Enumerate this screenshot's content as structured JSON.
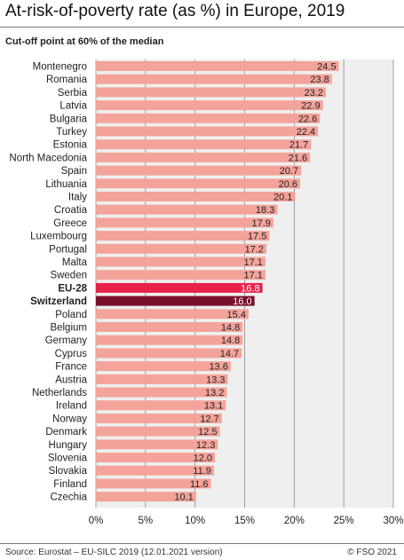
{
  "header": {
    "title": "At-risk-of-poverty rate (as %) in Europe, 2019",
    "subtitle": "Cut-off point at 60% of the median"
  },
  "footer": {
    "source": "Source: Eurostat – EU-SILC 2019 (12.01.2021 version)",
    "copyright": "© FSO 2021"
  },
  "colors": {
    "bar_default": "#f4a39a",
    "bar_eu28": "#e8234a",
    "bar_switzerland": "#7a0f2c",
    "plot_background": "#efefef",
    "grid": "#8a8a8a"
  },
  "chart_data": {
    "type": "bar",
    "orientation": "horizontal",
    "categories": [
      "Montenegro",
      "Romania",
      "Serbia",
      "Latvia",
      "Bulgaria",
      "Turkey",
      "Estonia",
      "North Macedonia",
      "Spain",
      "Lithuania",
      "Italy",
      "Croatia",
      "Greece",
      "Luxembourg",
      "Portugal",
      "Malta",
      "Sweden",
      "EU-28",
      "Switzerland",
      "Poland",
      "Belgium",
      "Germany",
      "Cyprus",
      "France",
      "Austria",
      "Netherlands",
      "Ireland",
      "Norway",
      "Denmark",
      "Hungary",
      "Slovenia",
      "Slovakia",
      "Finland",
      "Czechia"
    ],
    "values": [
      24.5,
      23.8,
      23.2,
      22.9,
      22.6,
      22.4,
      21.7,
      21.6,
      20.7,
      20.6,
      20.1,
      18.3,
      17.9,
      17.5,
      17.2,
      17.1,
      17.1,
      16.8,
      16.0,
      15.4,
      14.8,
      14.8,
      14.7,
      13.6,
      13.3,
      13.2,
      13.1,
      12.7,
      12.5,
      12.3,
      12.0,
      11.9,
      11.6,
      10.1
    ],
    "value_labels": [
      "24.5",
      "23.8",
      "23.2",
      "22.9",
      "22.6",
      "22.4",
      "21.7",
      "21.6",
      "20.7",
      "20.6",
      "20.1",
      "18.3",
      "17.9",
      "17.5",
      "17.2",
      "17.1",
      "17.1",
      "16.8",
      "16.0",
      "15.4",
      "14.8",
      "14.8",
      "14.7",
      "13.6",
      "13.3",
      "13.2",
      "13.1",
      "12.7",
      "12.5",
      "12.3",
      "12.0",
      "11.9",
      "11.6",
      "10.1"
    ],
    "highlighted": {
      "EU-28": "eu28",
      "Switzerland": "switzerland"
    },
    "bold_categories": [
      "EU-28",
      "Switzerland"
    ],
    "xlim": [
      0,
      30
    ],
    "xticks": [
      0,
      5,
      10,
      15,
      20,
      25,
      30
    ],
    "xtick_labels": [
      "0%",
      "5%",
      "10%",
      "15%",
      "20%",
      "25%",
      "30%"
    ],
    "title": "At-risk-of-poverty rate (as %) in Europe, 2019",
    "subtitle": "Cut-off point at 60% of the median",
    "grid": true
  }
}
